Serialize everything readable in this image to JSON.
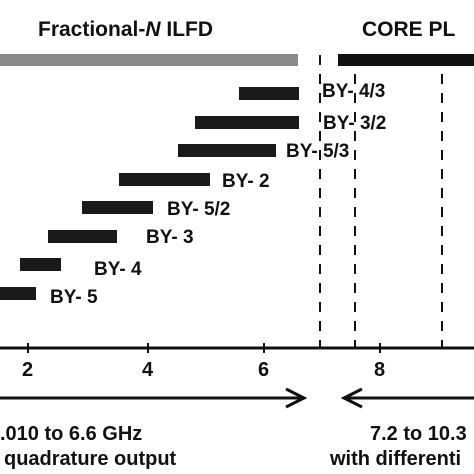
{
  "header": {
    "ilfd_prefix": "Fractional-",
    "ilfd_n": "N",
    "ilfd_suffix": " ILFD",
    "core_title": "CORE PL"
  },
  "ranges": [
    {
      "label": "BY- 4/3"
    },
    {
      "label": "BY- 3/2"
    },
    {
      "label": "BY- 5/3"
    },
    {
      "label": "BY- 2"
    },
    {
      "label": "BY- 5/2"
    },
    {
      "label": "BY- 3"
    },
    {
      "label": "BY- 4"
    },
    {
      "label": "BY- 5"
    }
  ],
  "axis": {
    "ticks": [
      "2",
      "4",
      "6",
      "8"
    ],
    "unit": "GHz"
  },
  "captions": {
    "ilfd_range": ".010 to 6.6 GHz",
    "ilfd_output": "quadrature output",
    "core_range": "7.2 to 10.3",
    "core_output": "with differenti"
  },
  "colors": {
    "ilfd_band": "#8a8a8a",
    "core_band": "#111111",
    "bar": "#1a1a1a"
  }
}
